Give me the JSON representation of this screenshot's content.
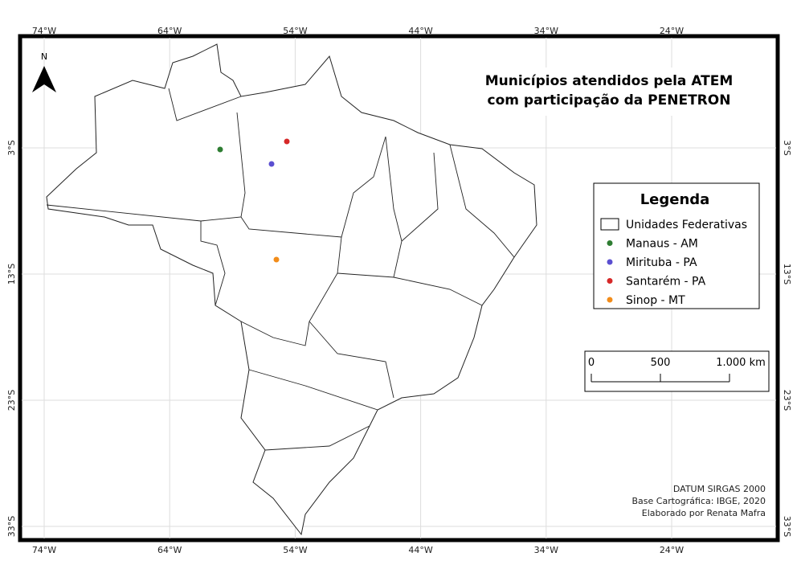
{
  "title": [
    "Municípios atendidos pela ATEM",
    "com participação da PENETRON"
  ],
  "north": "N",
  "grid": {
    "lon_labels": [
      "74°W",
      "64°W",
      "54°W",
      "44°W",
      "34°W",
      "24°W"
    ],
    "lat_labels": [
      "3°S",
      "13°S",
      "23°S",
      "33°S"
    ]
  },
  "legend": {
    "title": "Legenda",
    "items": [
      {
        "label": "Unidades Federativas"
      },
      {
        "label": "Manaus - AM",
        "color": "#2e7d32"
      },
      {
        "label": "Mirituba - PA",
        "color": "#5b4fd1"
      },
      {
        "label": "Santarém - PA",
        "color": "#d62828"
      },
      {
        "label": "Sinop - MT",
        "color": "#f28c1a"
      }
    ]
  },
  "scale": {
    "labels": [
      "0",
      "500",
      "1.000 km"
    ]
  },
  "credits": [
    "DATUM SIRGAS 2000",
    "Base Cartográfica: IBGE, 2020",
    "Elaborado por Renata Mafra"
  ]
}
